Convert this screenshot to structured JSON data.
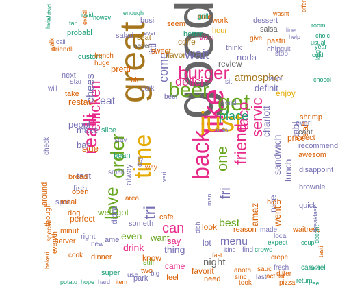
{
  "palette": {
    "teal": "#1b9e77",
    "orange": "#d95f02",
    "purple": "#7570b3",
    "magenta": "#e7298a",
    "green": "#66a61e",
    "gold": "#e6ab02",
    "brown": "#a6761d",
    "gray": "#666666"
  },
  "words": [
    {
      "text": "good",
      "color": "gray"
    },
    {
      "text": "great",
      "color": "brown"
    },
    {
      "text": "like",
      "color": "magenta"
    },
    {
      "text": "just",
      "color": "gold"
    },
    {
      "text": "get",
      "color": "green"
    },
    {
      "text": "beer",
      "color": "green"
    },
    {
      "text": "burger",
      "color": "magenta"
    },
    {
      "text": "back",
      "color": "magenta"
    },
    {
      "text": "time",
      "color": "gold"
    },
    {
      "text": "realli",
      "color": "magenta"
    },
    {
      "text": "order",
      "color": "green"
    },
    {
      "text": "love",
      "color": "green"
    },
    {
      "text": "tri",
      "color": "purple"
    },
    {
      "text": "chicken",
      "color": "magenta"
    },
    {
      "text": "friend",
      "color": "magenta"
    },
    {
      "text": "taco",
      "color": "magenta"
    },
    {
      "text": "servic",
      "color": "magenta"
    },
    {
      "text": "one",
      "color": "green"
    },
    {
      "text": "fri",
      "color": "purple"
    },
    {
      "text": "can",
      "color": "magenta"
    },
    {
      "text": "wait",
      "color": "purple"
    },
    {
      "text": "delici",
      "color": "magenta"
    },
    {
      "text": "come",
      "color": "purple"
    },
    {
      "text": "chees",
      "color": "purple"
    },
    {
      "text": "menu",
      "color": "purple"
    },
    {
      "text": "best",
      "color": "green"
    },
    {
      "text": "night",
      "color": "gray"
    },
    {
      "text": "eat",
      "color": "purple"
    },
    {
      "text": "place",
      "color": "teal"
    },
    {
      "text": "amaz",
      "color": "orange"
    },
    {
      "text": "sandwich",
      "color": "purple"
    },
    {
      "text": "charlott",
      "color": "purple"
    },
    {
      "text": "nice",
      "color": "purple"
    },
    {
      "text": "went",
      "color": "orange"
    },
    {
      "text": "lunch",
      "color": "purple"
    },
    {
      "text": "tabl",
      "color": "purple"
    },
    {
      "text": "staff",
      "color": "orange"
    },
    {
      "text": "price",
      "color": "orange"
    },
    {
      "text": "atmospher",
      "color": "brown"
    },
    {
      "text": "definit",
      "color": "purple"
    },
    {
      "text": "enjoy",
      "color": "gold"
    },
    {
      "text": "review",
      "color": "gray"
    },
    {
      "text": "visit",
      "color": "magenta"
    },
    {
      "text": "noda",
      "color": "purple"
    },
    {
      "text": "flavor",
      "color": "brown"
    },
    {
      "text": "coffe",
      "color": "brown"
    },
    {
      "text": "littl",
      "color": "purple"
    },
    {
      "text": "pretti",
      "color": "orange"
    },
    {
      "text": "restaur",
      "color": "orange"
    },
    {
      "text": "peopl",
      "color": "purple"
    },
    {
      "text": "make",
      "color": "purple"
    },
    {
      "text": "bar",
      "color": "purple"
    },
    {
      "text": "side",
      "color": "orange"
    },
    {
      "text": "fish",
      "color": "purple"
    },
    {
      "text": "tast",
      "color": "purple"
    },
    {
      "text": "well",
      "color": "green"
    },
    {
      "text": "got",
      "color": "green"
    },
    {
      "text": "alway",
      "color": "purple"
    },
    {
      "text": "even",
      "color": "green"
    },
    {
      "text": "drink",
      "color": "magenta"
    },
    {
      "text": "want",
      "color": "green"
    },
    {
      "text": "thing",
      "color": "purple"
    },
    {
      "text": "say",
      "color": "magenta"
    },
    {
      "text": "know",
      "color": "orange"
    },
    {
      "text": "came",
      "color": "magenta"
    },
    {
      "text": "lot",
      "color": "purple"
    },
    {
      "text": "look",
      "color": "orange"
    },
    {
      "text": "favorit",
      "color": "orange"
    },
    {
      "text": "feel",
      "color": "orange"
    },
    {
      "text": "need",
      "color": "orange"
    },
    {
      "text": "park",
      "color": "purple"
    },
    {
      "text": "super",
      "color": "teal"
    },
    {
      "text": "two",
      "color": "orange"
    },
    {
      "text": "still",
      "color": "green"
    },
    {
      "text": "perfect",
      "color": "orange"
    },
    {
      "text": "didnt",
      "color": "purple"
    },
    {
      "text": "dinner",
      "color": "orange"
    },
    {
      "text": "right",
      "color": "purple"
    },
    {
      "text": "open",
      "color": "orange"
    },
    {
      "text": "spot",
      "color": "purple"
    },
    {
      "text": "though",
      "color": "orange"
    },
    {
      "text": "around",
      "color": "orange"
    },
    {
      "text": "special",
      "color": "orange"
    },
    {
      "text": "everyth",
      "color": "orange"
    },
    {
      "text": "take",
      "color": "orange"
    },
    {
      "text": "star",
      "color": "purple"
    },
    {
      "text": "next",
      "color": "purple"
    },
    {
      "text": "will",
      "color": "purple"
    },
    {
      "text": "seat",
      "color": "brown"
    },
    {
      "text": "busi",
      "color": "purple"
    },
    {
      "text": "sweet",
      "color": "orange"
    },
    {
      "text": "bit",
      "color": "orange"
    },
    {
      "text": "never",
      "color": "gray"
    },
    {
      "text": "salad",
      "color": "purple"
    },
    {
      "text": "better",
      "color": "teal"
    },
    {
      "text": "seem",
      "color": "orange"
    },
    {
      "text": "sure",
      "color": "orange"
    },
    {
      "text": "think",
      "color": "purple"
    },
    {
      "text": "work",
      "color": "orange"
    },
    {
      "text": "hour",
      "color": "gold"
    },
    {
      "text": "dessert",
      "color": "purple"
    },
    {
      "text": "salsa",
      "color": "gray"
    },
    {
      "text": "pastri",
      "color": "orange"
    },
    {
      "text": "chip",
      "color": "purple"
    },
    {
      "text": "give",
      "color": "orange"
    },
    {
      "text": "stop",
      "color": "purple"
    },
    {
      "text": "high",
      "color": "orange"
    },
    {
      "text": "select",
      "color": "orange"
    },
    {
      "text": "everi",
      "color": "purple"
    },
    {
      "text": "shrimp",
      "color": "orange"
    },
    {
      "text": "cant",
      "color": "gray"
    },
    {
      "text": "recommend",
      "color": "purple"
    },
    {
      "text": "awesom",
      "color": "orange"
    },
    {
      "text": "disappoint",
      "color": "purple"
    },
    {
      "text": "brownie",
      "color": "purple"
    },
    {
      "text": "quick",
      "color": "purple"
    },
    {
      "text": "waitress",
      "color": "orange"
    },
    {
      "text": "crowd",
      "color": "teal"
    },
    {
      "text": "expect",
      "color": "teal"
    },
    {
      "text": "local",
      "color": "purple"
    },
    {
      "text": "made",
      "color": "purple"
    },
    {
      "text": "crepe",
      "color": "orange"
    },
    {
      "text": "fresh",
      "color": "purple"
    },
    {
      "text": "sauc",
      "color": "orange"
    },
    {
      "text": "last",
      "color": "purple"
    },
    {
      "text": "sinc",
      "color": "orange"
    },
    {
      "text": "find",
      "color": "purple"
    },
    {
      "text": "reason",
      "color": "orange"
    },
    {
      "text": "anoth",
      "color": "orange"
    },
    {
      "text": "actual",
      "color": "orange"
    },
    {
      "text": "differ",
      "color": "orange"
    },
    {
      "text": "pizza",
      "color": "orange"
    },
    {
      "text": "took",
      "color": "orange"
    },
    {
      "text": "return",
      "color": "teal"
    },
    {
      "text": "free",
      "color": "teal"
    },
    {
      "text": "item",
      "color": "orange"
    },
    {
      "text": "hard",
      "color": "purple"
    },
    {
      "text": "hope",
      "color": "teal"
    },
    {
      "text": "potato",
      "color": "teal"
    },
    {
      "text": "bakeri",
      "color": "orange"
    },
    {
      "text": "cook",
      "color": "orange"
    },
    {
      "text": "server",
      "color": "orange"
    },
    {
      "text": "minut",
      "color": "orange"
    },
    {
      "text": "dog",
      "color": "orange"
    },
    {
      "text": "meal",
      "color": "orange"
    },
    {
      "text": "bread",
      "color": "orange"
    },
    {
      "text": "check",
      "color": "purple"
    },
    {
      "text": "walk",
      "color": "orange"
    },
    {
      "text": "friendli",
      "color": "orange"
    },
    {
      "text": "heist",
      "color": "teal"
    },
    {
      "text": "call",
      "color": "purple"
    },
    {
      "text": "probabl",
      "color": "teal"
    },
    {
      "text": "fan",
      "color": "teal"
    },
    {
      "text": "outsid",
      "color": "teal"
    },
    {
      "text": "excel",
      "color": "orange"
    },
    {
      "text": "custom",
      "color": "teal"
    },
    {
      "text": "insid",
      "color": "teal"
    },
    {
      "text": "french",
      "color": "orange"
    },
    {
      "text": "huge",
      "color": "orange"
    },
    {
      "text": "wasnt",
      "color": "orange"
    },
    {
      "text": "offer",
      "color": "orange"
    },
    {
      "text": "room",
      "color": "teal"
    },
    {
      "text": "choic",
      "color": "teal"
    },
    {
      "text": "cold",
      "color": "teal"
    },
    {
      "text": "usual",
      "color": "teal"
    },
    {
      "text": "year",
      "color": "teal"
    },
    {
      "text": "larg",
      "color": "teal"
    },
    {
      "text": "chocol",
      "color": "teal"
    },
    {
      "text": "caramel",
      "color": "teal"
    },
    {
      "text": "tasti",
      "color": "orange"
    },
    {
      "text": "bad",
      "color": "teal"
    },
    {
      "text": "decent",
      "color": "teal"
    },
    {
      "text": "breakfast",
      "color": "purple"
    },
    {
      "text": "coupl",
      "color": "teal"
    },
    {
      "text": "grill",
      "color": "teal"
    },
    {
      "text": "fast",
      "color": "orange"
    },
    {
      "text": "dish",
      "color": "purple"
    },
    {
      "text": "kind",
      "color": "purple"
    },
    {
      "text": "slice",
      "color": "teal"
    },
    {
      "text": "bean",
      "color": "teal"
    },
    {
      "text": "small",
      "color": "purple"
    },
    {
      "text": "big",
      "color": "purple"
    },
    {
      "text": "use",
      "color": "purple"
    },
    {
      "text": "ame",
      "color": "purple"
    },
    {
      "text": "new",
      "color": "purple"
    },
    {
      "text": "someth",
      "color": "purple"
    },
    {
      "text": "cafe",
      "color": "orange"
    },
    {
      "text": "area",
      "color": "orange"
    },
    {
      "text": "way",
      "color": "orange"
    },
    {
      "text": "veri",
      "color": "purple"
    },
    {
      "text": "stay",
      "color": "purple"
    },
    {
      "text": "pork",
      "color": "purple"
    },
    {
      "text": "beef",
      "color": "purple"
    },
    {
      "text": "end",
      "color": "purple"
    },
    {
      "text": "sit",
      "color": "purple"
    },
    {
      "text": "also",
      "color": "purple"
    },
    {
      "text": "line",
      "color": "purple"
    },
    {
      "text": "help",
      "color": "purple"
    },
    {
      "text": "quit",
      "color": "purple"
    },
    {
      "text": "happi",
      "color": "purple"
    },
    {
      "text": "howev",
      "color": "teal"
    },
    {
      "text": "enough",
      "color": "teal"
    },
    {
      "text": "ever",
      "color": "purple"
    },
    {
      "text": "day",
      "color": "purple"
    },
    {
      "text": "mani",
      "color": "purple"
    },
    {
      "text": "pickl",
      "color": "purple"
    },
    {
      "text": "food",
      "color": "orange"
    },
    {
      "text": "tea",
      "color": "teal"
    }
  ]
}
